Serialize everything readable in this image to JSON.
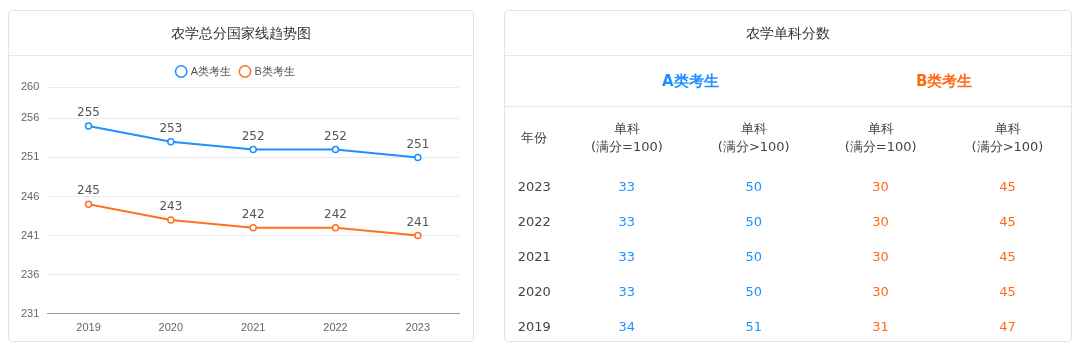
{
  "chart_data": [
    {
      "type": "line",
      "title": "农学总分国家线趋势图",
      "categories": [
        "2019",
        "2020",
        "2021",
        "2022",
        "2023"
      ],
      "series": [
        {
          "name": "A类考生",
          "color": "#1e90ff",
          "values": [
            255,
            253,
            252,
            252,
            251
          ]
        },
        {
          "name": "B类考生",
          "color": "#ff7021",
          "values": [
            245,
            243,
            242,
            242,
            241
          ]
        }
      ],
      "ylim": [
        231,
        260
      ],
      "yticks": [
        231,
        236,
        241,
        246,
        251,
        256,
        260
      ],
      "grid": "y",
      "legend": "top",
      "marker": "circle",
      "data_labels": true
    },
    {
      "type": "heatmap",
      "title": "农学单科分数",
      "ylabel": "年份",
      "annotations": [
        "A类考生",
        "B类考生"
      ],
      "categories": [
        "单科\n(满分=100)",
        "单科\n(满分>100)",
        "单科\n(满分=100)",
        "单科\n(满分>100)"
      ],
      "y_categories": [
        "2023",
        "2022",
        "2021",
        "2020",
        "2019"
      ],
      "colors": [
        "#1e90ff",
        "#1e90ff",
        "#ff6a13",
        "#ff6a13"
      ],
      "cells": [
        [
          33,
          50,
          30,
          45
        ],
        [
          33,
          50,
          30,
          45
        ],
        [
          33,
          50,
          30,
          45
        ],
        [
          33,
          50,
          30,
          45
        ],
        [
          34,
          51,
          31,
          47
        ]
      ],
      "data_labels": true
    }
  ]
}
